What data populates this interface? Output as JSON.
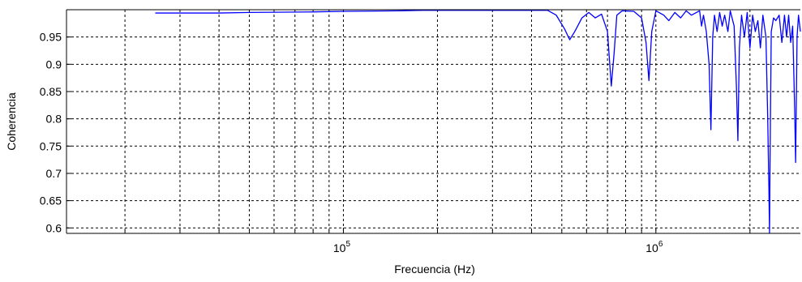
{
  "chart_data": {
    "type": "line",
    "title": "",
    "xlabel": "Frecuencia (Hz)",
    "ylabel": "Coherencia",
    "xscale": "log",
    "xlim": [
      13000,
      2900000
    ],
    "ylim": [
      0.59,
      1.0
    ],
    "grid": true,
    "colors": {
      "line": "#0000ff",
      "grid": "#000000",
      "axes": "#000000",
      "background": "#ffffff"
    },
    "y_ticks": [
      {
        "value": 0.6,
        "label": "0.6"
      },
      {
        "value": 0.65,
        "label": "0.65"
      },
      {
        "value": 0.7,
        "label": "0.7"
      },
      {
        "value": 0.75,
        "label": "0.75"
      },
      {
        "value": 0.8,
        "label": "0.8"
      },
      {
        "value": 0.85,
        "label": "0.85"
      },
      {
        "value": 0.9,
        "label": "0.9"
      },
      {
        "value": 0.95,
        "label": "0.95"
      }
    ],
    "x_major_ticks": [
      {
        "value": 100000,
        "base": "10",
        "exp": "5"
      },
      {
        "value": 1000000,
        "base": "10",
        "exp": "6"
      }
    ],
    "x_minor_ticks": [
      20000,
      30000,
      40000,
      50000,
      60000,
      70000,
      80000,
      90000,
      200000,
      300000,
      400000,
      500000,
      600000,
      700000,
      800000,
      900000,
      2000000
    ],
    "series": [
      {
        "values": [
          [
            25000,
            0.994
          ],
          [
            40000,
            0.994
          ],
          [
            50000,
            0.995
          ],
          [
            80000,
            0.996
          ],
          [
            100000,
            0.997
          ],
          [
            150000,
            0.998
          ],
          [
            180000,
            0.999
          ],
          [
            250000,
            0.999
          ],
          [
            350000,
            0.999
          ],
          [
            400000,
            0.999
          ],
          [
            450000,
            0.999
          ],
          [
            480000,
            0.99
          ],
          [
            510000,
            0.965
          ],
          [
            530000,
            0.945
          ],
          [
            550000,
            0.96
          ],
          [
            580000,
            0.985
          ],
          [
            610000,
            0.995
          ],
          [
            640000,
            0.985
          ],
          [
            670000,
            0.992
          ],
          [
            700000,
            0.96
          ],
          [
            720000,
            0.86
          ],
          [
            735000,
            0.92
          ],
          [
            750000,
            0.99
          ],
          [
            780000,
            0.998
          ],
          [
            850000,
            0.997
          ],
          [
            900000,
            0.985
          ],
          [
            930000,
            0.94
          ],
          [
            950000,
            0.87
          ],
          [
            970000,
            0.96
          ],
          [
            1000000,
            0.998
          ],
          [
            1060000,
            0.99
          ],
          [
            1100000,
            0.98
          ],
          [
            1150000,
            0.995
          ],
          [
            1200000,
            0.985
          ],
          [
            1250000,
            0.998
          ],
          [
            1300000,
            0.99
          ],
          [
            1380000,
            0.998
          ],
          [
            1400000,
            0.97
          ],
          [
            1420000,
            0.99
          ],
          [
            1450000,
            0.96
          ],
          [
            1480000,
            0.9
          ],
          [
            1500000,
            0.78
          ],
          [
            1520000,
            0.95
          ],
          [
            1540000,
            0.99
          ],
          [
            1570000,
            0.96
          ],
          [
            1600000,
            0.995
          ],
          [
            1630000,
            0.97
          ],
          [
            1660000,
            0.99
          ],
          [
            1700000,
            0.96
          ],
          [
            1730000,
            0.998
          ],
          [
            1780000,
            0.97
          ],
          [
            1810000,
            0.86
          ],
          [
            1830000,
            0.76
          ],
          [
            1850000,
            0.93
          ],
          [
            1880000,
            0.99
          ],
          [
            1920000,
            0.95
          ],
          [
            1960000,
            0.995
          ],
          [
            2000000,
            0.93
          ],
          [
            2040000,
            0.99
          ],
          [
            2080000,
            0.96
          ],
          [
            2120000,
            0.98
          ],
          [
            2160000,
            0.93
          ],
          [
            2200000,
            0.99
          ],
          [
            2250000,
            0.95
          ],
          [
            2280000,
            0.8
          ],
          [
            2300000,
            0.67
          ],
          [
            2310000,
            0.59
          ],
          [
            2320000,
            0.73
          ],
          [
            2340000,
            0.96
          ],
          [
            2380000,
            0.985
          ],
          [
            2420000,
            0.98
          ],
          [
            2480000,
            0.99
          ],
          [
            2530000,
            0.94
          ],
          [
            2580000,
            0.99
          ],
          [
            2620000,
            0.95
          ],
          [
            2660000,
            0.99
          ],
          [
            2700000,
            0.94
          ],
          [
            2740000,
            0.97
          ],
          [
            2780000,
            0.82
          ],
          [
            2800000,
            0.72
          ],
          [
            2830000,
            0.95
          ],
          [
            2860000,
            0.99
          ],
          [
            2900000,
            0.96
          ]
        ]
      }
    ]
  }
}
